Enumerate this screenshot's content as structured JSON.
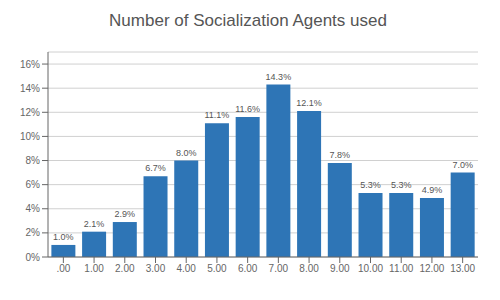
{
  "chart_data": {
    "type": "bar",
    "title": "Number of Socialization Agents used",
    "categories": [
      ".00",
      "1.00",
      "2.00",
      "3.00",
      "4.00",
      "5.00",
      "6.00",
      "7.00",
      "8.00",
      "9.00",
      "10.00",
      "11.00",
      "12.00",
      "13.00"
    ],
    "values": [
      1.0,
      2.1,
      2.9,
      6.7,
      8.0,
      11.1,
      11.6,
      14.3,
      12.1,
      7.8,
      5.3,
      5.3,
      4.9,
      7.0
    ],
    "value_labels": [
      "1.0%",
      "2.1%",
      "2.9%",
      "6.7%",
      "8.0%",
      "11.1%",
      "11.6%",
      "14.3%",
      "12.1%",
      "7.8%",
      "5.3%",
      "5.3%",
      "4.9%",
      "7.0%"
    ],
    "data_labels": true,
    "color": "#2E75B6",
    "ylim": [
      0,
      17
    ],
    "yticks": [
      {
        "value": 0,
        "label": "0%"
      },
      {
        "value": 2,
        "label": "2%"
      },
      {
        "value": 4,
        "label": "4%"
      },
      {
        "value": 6,
        "label": "6%"
      },
      {
        "value": 8,
        "label": "8%"
      },
      {
        "value": 10,
        "label": "10%"
      },
      {
        "value": 12,
        "label": "12%"
      },
      {
        "value": 14,
        "label": "14%"
      },
      {
        "value": 16,
        "label": "16%"
      }
    ],
    "grid": true
  }
}
